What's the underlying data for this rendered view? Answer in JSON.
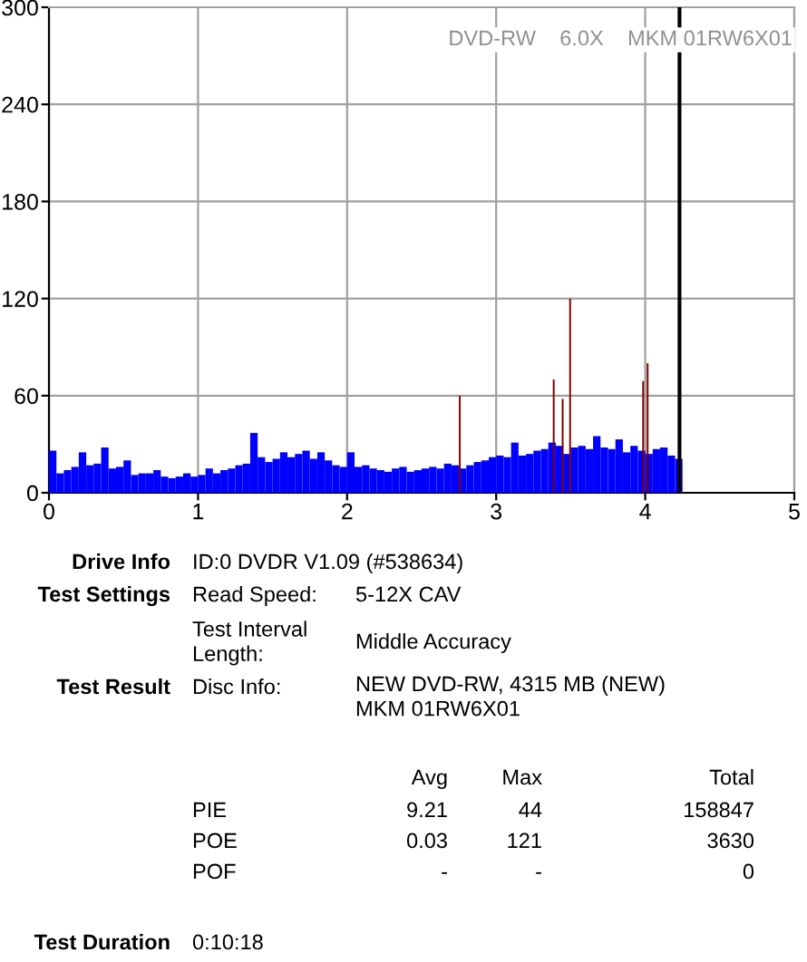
{
  "chart_data": {
    "type": "bar",
    "xlim": [
      0,
      5
    ],
    "ylim": [
      0,
      300
    ],
    "xticks": [
      0,
      1,
      2,
      3,
      4,
      5
    ],
    "yticks": [
      0,
      60,
      120,
      180,
      240,
      300
    ],
    "grid": true,
    "series": [
      {
        "color": "#0000ff",
        "x": [
          0,
          0.05,
          0.1,
          0.15,
          0.2,
          0.25,
          0.3,
          0.35,
          0.4,
          0.45,
          0.5,
          0.55,
          0.6,
          0.65,
          0.7,
          0.75,
          0.8,
          0.85,
          0.9,
          0.95,
          1.0,
          1.05,
          1.1,
          1.15,
          1.2,
          1.25,
          1.3,
          1.35,
          1.4,
          1.45,
          1.5,
          1.55,
          1.6,
          1.65,
          1.7,
          1.75,
          1.8,
          1.85,
          1.9,
          1.95,
          2.0,
          2.05,
          2.1,
          2.15,
          2.2,
          2.25,
          2.3,
          2.35,
          2.4,
          2.45,
          2.5,
          2.55,
          2.6,
          2.65,
          2.7,
          2.75,
          2.8,
          2.85,
          2.9,
          2.95,
          3.0,
          3.05,
          3.1,
          3.15,
          3.2,
          3.25,
          3.3,
          3.35,
          3.4,
          3.45,
          3.5,
          3.55,
          3.6,
          3.65,
          3.7,
          3.75,
          3.8,
          3.85,
          3.9,
          3.95,
          4.0,
          4.05,
          4.1,
          4.15,
          4.2
        ],
        "values": [
          26,
          12,
          14,
          16,
          25,
          17,
          18,
          28,
          15,
          16,
          20,
          11,
          12,
          12,
          14,
          10,
          9,
          10,
          12,
          10,
          11,
          15,
          12,
          14,
          15,
          17,
          18,
          37,
          22,
          19,
          21,
          25,
          22,
          24,
          26,
          21,
          25,
          20,
          17,
          16,
          25,
          16,
          17,
          15,
          14,
          13,
          15,
          16,
          13,
          14,
          15,
          16,
          15,
          18,
          17,
          15,
          17,
          19,
          20,
          22,
          23,
          22,
          31,
          23,
          24,
          26,
          27,
          31,
          29,
          24,
          28,
          29,
          27,
          35,
          28,
          27,
          33,
          25,
          29,
          26,
          24,
          27,
          28,
          23,
          21
        ]
      },
      {
        "color": "#800000",
        "x": [
          2.75,
          3.38,
          3.44,
          3.49,
          3.98,
          4.01
        ],
        "values": [
          60,
          70,
          58,
          120,
          69,
          80
        ]
      }
    ],
    "ref_lines": [
      {
        "axis": "x",
        "value": 4.23,
        "color": "#000000"
      }
    ],
    "annotations": [
      "DVD-RW    6.0X    MKM 01RW6X01",
      "Drive Info",
      "ID:0 DVDR V1.09 (#538634)",
      "Test Settings",
      "Read Speed:",
      "5-12X CAV",
      "Test Interval\nLength:",
      "Middle Accuracy",
      "Test Result",
      "Disc Info:",
      "NEW DVD-RW, 4315 MB (NEW)\nMKM 01RW6X01",
      "Avg",
      "Max",
      "Total",
      "PIE",
      "9.21",
      "44",
      "158847",
      "POE",
      "0.03",
      "121",
      "3630",
      "POF",
      "-",
      "-",
      "0",
      "Test Duration",
      "0:10:18"
    ]
  }
}
